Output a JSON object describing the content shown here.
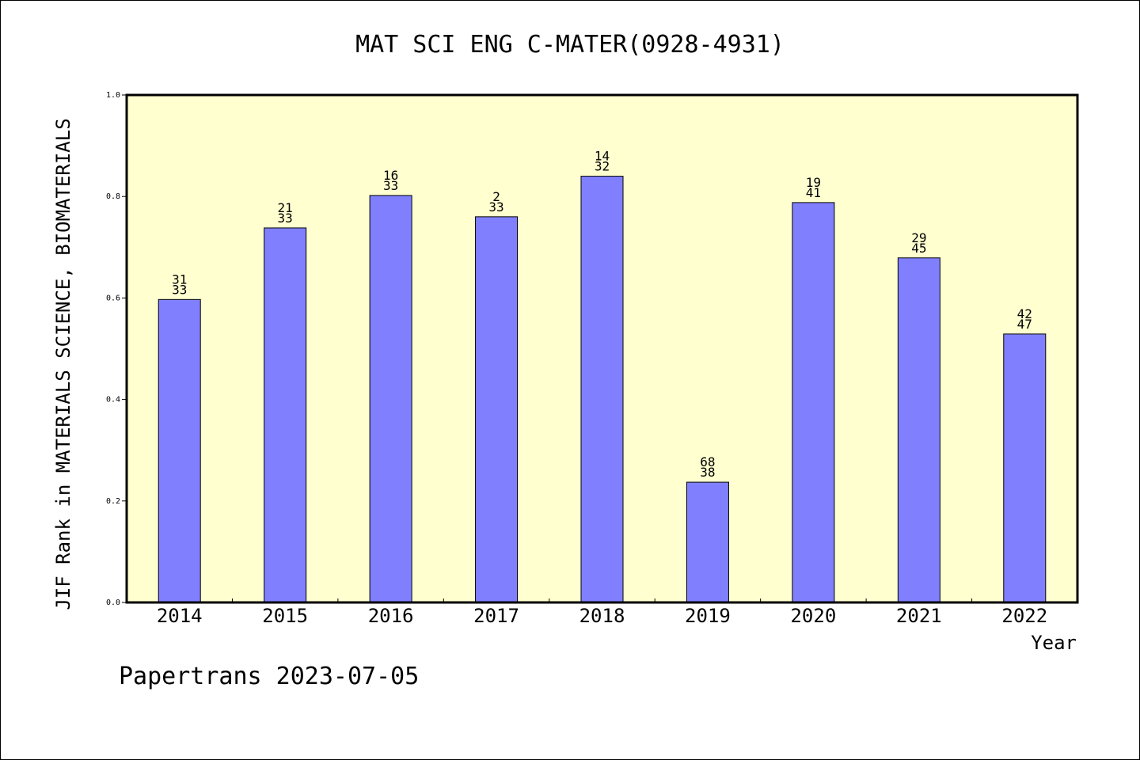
{
  "chart_data": {
    "type": "bar",
    "title": "MAT SCI ENG C-MATER(0928-4931)",
    "xlabel": "Year",
    "ylabel": "JIF Rank in MATERIALS SCIENCE, BIOMATERIALS",
    "ylim": [
      0.0,
      1.0
    ],
    "yticks": [
      "0.0",
      "0.2",
      "0.4",
      "0.6",
      "0.8",
      "1.0"
    ],
    "categories": [
      "2014",
      "2015",
      "2016",
      "2017",
      "2018",
      "2019",
      "2020",
      "2021",
      "2022"
    ],
    "values": [
      0.597,
      0.738,
      0.802,
      0.76,
      0.84,
      0.237,
      0.788,
      0.679,
      0.529
    ],
    "labels_top": [
      "31",
      "21",
      "16",
      "2",
      "14",
      "68",
      "19",
      "29",
      "42"
    ],
    "labels_bottom": [
      "33",
      "33",
      "33",
      "33",
      "32",
      "38",
      "41",
      "45",
      "47"
    ],
    "bar_color": "#8080ff",
    "plot_background": "#ffffd0",
    "grid": false,
    "legend": "none"
  },
  "footer": "Papertrans 2023-07-05"
}
